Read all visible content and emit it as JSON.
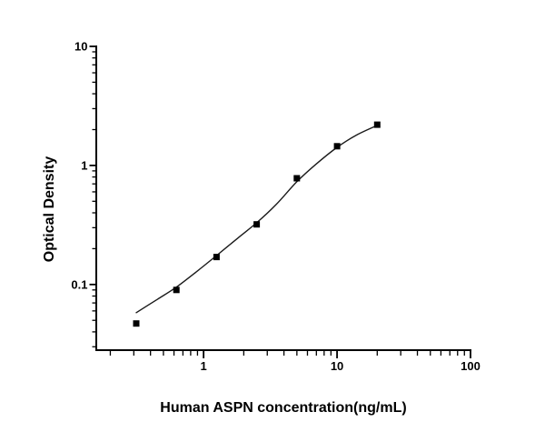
{
  "page": {
    "background": "#ffffff"
  },
  "chart_data": {
    "type": "scatter",
    "xlabel": "Human ASPN concentration(ng/mL)",
    "ylabel": "Optical Density",
    "xscale": "log",
    "yscale": "log",
    "xlim": [
      0.157,
      100
    ],
    "ylim": [
      0.0276,
      10
    ],
    "grid": false,
    "legend": false,
    "axis_color": "#000000",
    "background_color": "#ffffff",
    "x_major_ticks": [
      1,
      10,
      100
    ],
    "x_tick_labels": [
      "1",
      "10",
      "100"
    ],
    "x_minor_ticks": [
      0.2,
      0.3,
      0.4,
      0.5,
      0.6,
      0.7,
      0.8,
      0.9,
      2,
      3,
      4,
      5,
      6,
      7,
      8,
      9,
      20,
      30,
      40,
      50,
      60,
      70,
      80,
      90
    ],
    "y_major_ticks": [
      10,
      1,
      0.1
    ],
    "y_tick_labels": [
      "10",
      "1",
      "0.1"
    ],
    "y_minor_ticks": [
      0.03,
      0.04,
      0.05,
      0.06,
      0.07,
      0.08,
      0.09,
      0.2,
      0.3,
      0.4,
      0.5,
      0.6,
      0.7,
      0.8,
      0.9,
      2,
      3,
      4,
      5,
      6,
      7,
      8,
      9
    ],
    "series": [
      {
        "marker": "filled-square",
        "marker_color": "#000000",
        "marker_size": 7,
        "x": [
          0.313,
          0.625,
          1.25,
          2.5,
          5,
          10,
          20
        ],
        "y": [
          0.047,
          0.09,
          0.17,
          0.32,
          0.78,
          1.45,
          2.2
        ]
      }
    ],
    "fit_curve": {
      "color": "#1a1a1a",
      "points": [
        [
          0.313,
          0.058
        ],
        [
          0.45,
          0.075
        ],
        [
          0.625,
          0.095
        ],
        [
          0.9,
          0.13
        ],
        [
          1.25,
          0.175
        ],
        [
          1.8,
          0.245
        ],
        [
          2.5,
          0.33
        ],
        [
          3.5,
          0.47
        ],
        [
          5,
          0.73
        ],
        [
          7,
          1.03
        ],
        [
          10,
          1.42
        ],
        [
          14,
          1.8
        ],
        [
          20,
          2.17
        ]
      ]
    }
  }
}
